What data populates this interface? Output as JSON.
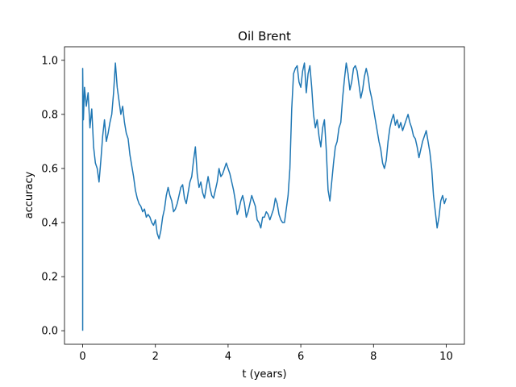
{
  "chart_data": {
    "type": "line",
    "title": "Oil Brent",
    "xlabel": "t (years)",
    "ylabel": "accuracy",
    "xlim": [
      -0.5,
      10.5
    ],
    "ylim": [
      -0.05,
      1.05
    ],
    "x_ticks": [
      0,
      2,
      4,
      6,
      8,
      10
    ],
    "y_ticks": [
      0.0,
      0.2,
      0.4,
      0.6,
      0.8,
      1.0
    ],
    "x_tick_labels": [
      "0",
      "2",
      "4",
      "6",
      "8",
      "10"
    ],
    "y_tick_labels": [
      "0.0",
      "0.2",
      "0.4",
      "0.6",
      "0.8",
      "1.0"
    ],
    "grid": false,
    "color": "#1f77b4",
    "series": [
      {
        "x": [
          0.0,
          0.0,
          0.01,
          0.02,
          0.05,
          0.1,
          0.15,
          0.2,
          0.25,
          0.3,
          0.35,
          0.4,
          0.45,
          0.5,
          0.55,
          0.6,
          0.65,
          0.7,
          0.75,
          0.8,
          0.85,
          0.9,
          0.95,
          1.0,
          1.05,
          1.1,
          1.15,
          1.2,
          1.25,
          1.3,
          1.35,
          1.4,
          1.45,
          1.5,
          1.55,
          1.6,
          1.65,
          1.7,
          1.75,
          1.8,
          1.85,
          1.9,
          1.95,
          2.0,
          2.05,
          2.1,
          2.15,
          2.2,
          2.25,
          2.3,
          2.35,
          2.4,
          2.45,
          2.5,
          2.55,
          2.6,
          2.65,
          2.7,
          2.75,
          2.8,
          2.85,
          2.9,
          2.95,
          3.0,
          3.05,
          3.1,
          3.15,
          3.2,
          3.25,
          3.3,
          3.35,
          3.4,
          3.45,
          3.5,
          3.55,
          3.6,
          3.65,
          3.7,
          3.75,
          3.8,
          3.85,
          3.9,
          3.95,
          4.0,
          4.05,
          4.1,
          4.15,
          4.2,
          4.25,
          4.3,
          4.35,
          4.4,
          4.45,
          4.5,
          4.55,
          4.6,
          4.65,
          4.7,
          4.75,
          4.8,
          4.85,
          4.9,
          4.95,
          5.0,
          5.05,
          5.1,
          5.15,
          5.2,
          5.25,
          5.3,
          5.35,
          5.4,
          5.45,
          5.5,
          5.55,
          5.6,
          5.65,
          5.7,
          5.75,
          5.8,
          5.85,
          5.9,
          5.95,
          6.0,
          6.05,
          6.1,
          6.15,
          6.2,
          6.25,
          6.3,
          6.35,
          6.4,
          6.45,
          6.5,
          6.55,
          6.6,
          6.65,
          6.7,
          6.75,
          6.8,
          6.85,
          6.9,
          6.95,
          7.0,
          7.05,
          7.1,
          7.15,
          7.2,
          7.25,
          7.3,
          7.35,
          7.4,
          7.45,
          7.5,
          7.55,
          7.6,
          7.65,
          7.7,
          7.75,
          7.8,
          7.85,
          7.9,
          7.95,
          8.0,
          8.05,
          8.1,
          8.15,
          8.2,
          8.25,
          8.3,
          8.35,
          8.4,
          8.45,
          8.5,
          8.55,
          8.6,
          8.65,
          8.7,
          8.75,
          8.8,
          8.85,
          8.9,
          8.95,
          9.0,
          9.05,
          9.1,
          9.15,
          9.2,
          9.25,
          9.3,
          9.35,
          9.4,
          9.45,
          9.5,
          9.55,
          9.6,
          9.65,
          9.7,
          9.75,
          9.8,
          9.85,
          9.9,
          9.95,
          10.0
        ],
        "y": [
          0.0,
          0.97,
          0.85,
          0.78,
          0.9,
          0.83,
          0.88,
          0.75,
          0.82,
          0.68,
          0.62,
          0.6,
          0.55,
          0.63,
          0.72,
          0.78,
          0.7,
          0.73,
          0.77,
          0.8,
          0.88,
          0.99,
          0.9,
          0.85,
          0.8,
          0.83,
          0.77,
          0.73,
          0.71,
          0.65,
          0.61,
          0.57,
          0.52,
          0.49,
          0.47,
          0.46,
          0.44,
          0.45,
          0.42,
          0.43,
          0.42,
          0.4,
          0.39,
          0.41,
          0.36,
          0.34,
          0.37,
          0.42,
          0.45,
          0.5,
          0.53,
          0.5,
          0.48,
          0.44,
          0.45,
          0.47,
          0.5,
          0.53,
          0.54,
          0.49,
          0.47,
          0.51,
          0.55,
          0.57,
          0.63,
          0.68,
          0.58,
          0.53,
          0.55,
          0.51,
          0.49,
          0.53,
          0.57,
          0.53,
          0.5,
          0.49,
          0.52,
          0.55,
          0.6,
          0.57,
          0.58,
          0.6,
          0.62,
          0.6,
          0.58,
          0.55,
          0.52,
          0.48,
          0.43,
          0.45,
          0.48,
          0.5,
          0.47,
          0.42,
          0.44,
          0.47,
          0.5,
          0.48,
          0.46,
          0.41,
          0.4,
          0.38,
          0.42,
          0.42,
          0.44,
          0.43,
          0.41,
          0.43,
          0.45,
          0.49,
          0.47,
          0.43,
          0.41,
          0.4,
          0.4,
          0.45,
          0.5,
          0.6,
          0.82,
          0.95,
          0.97,
          0.98,
          0.92,
          0.9,
          0.96,
          0.99,
          0.88,
          0.95,
          0.98,
          0.9,
          0.8,
          0.75,
          0.78,
          0.72,
          0.68,
          0.75,
          0.78,
          0.67,
          0.52,
          0.48,
          0.55,
          0.62,
          0.68,
          0.7,
          0.75,
          0.77,
          0.86,
          0.93,
          0.99,
          0.95,
          0.89,
          0.92,
          0.97,
          0.98,
          0.96,
          0.91,
          0.86,
          0.89,
          0.94,
          0.97,
          0.94,
          0.89,
          0.86,
          0.82,
          0.78,
          0.74,
          0.7,
          0.67,
          0.62,
          0.6,
          0.63,
          0.7,
          0.75,
          0.78,
          0.8,
          0.76,
          0.78,
          0.75,
          0.77,
          0.74,
          0.76,
          0.78,
          0.8,
          0.77,
          0.75,
          0.72,
          0.71,
          0.68,
          0.64,
          0.67,
          0.7,
          0.72,
          0.74,
          0.7,
          0.66,
          0.6,
          0.5,
          0.44,
          0.38,
          0.42,
          0.48,
          0.5,
          0.47,
          0.49
        ]
      }
    ]
  }
}
